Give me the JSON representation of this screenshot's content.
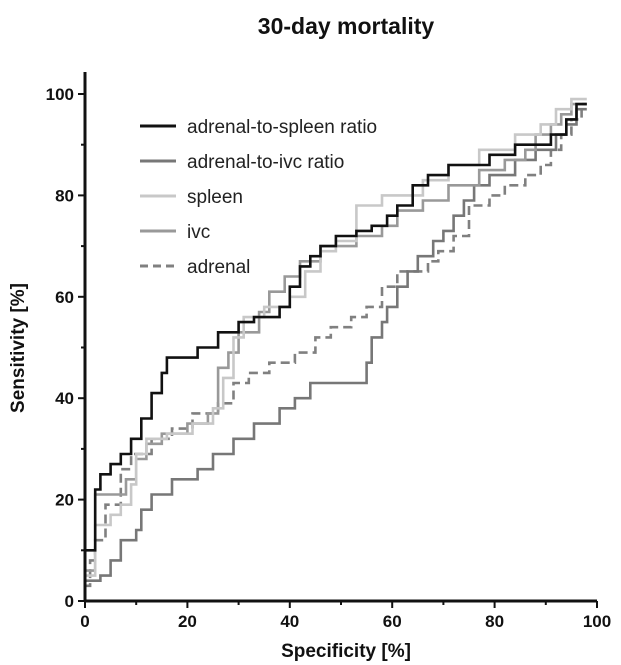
{
  "chart_data": {
    "type": "line",
    "title": "30-day mortality",
    "xlabel": "Specificity [%]",
    "ylabel": "Sensitivity [%]",
    "xlim": [
      0,
      100
    ],
    "ylim": [
      0,
      100
    ],
    "xticks": [
      "0",
      "20",
      "40",
      "60",
      "80",
      "100"
    ],
    "yticks": [
      "0",
      "20",
      "40",
      "60",
      "80",
      "100"
    ],
    "legend_position": "top-left",
    "grid": false,
    "series": [
      {
        "name": "adrenal-to-spleen ratio",
        "color": "#111111",
        "dash": "solid",
        "points": [
          [
            0,
            0
          ],
          [
            0,
            10
          ],
          [
            2,
            10
          ],
          [
            2,
            22
          ],
          [
            3,
            22
          ],
          [
            3,
            25
          ],
          [
            5,
            25
          ],
          [
            5,
            27
          ],
          [
            7,
            27
          ],
          [
            7,
            29
          ],
          [
            9,
            29
          ],
          [
            9,
            32
          ],
          [
            11,
            32
          ],
          [
            11,
            36
          ],
          [
            13,
            36
          ],
          [
            13,
            41
          ],
          [
            15,
            41
          ],
          [
            15,
            45
          ],
          [
            16,
            45
          ],
          [
            16,
            48
          ],
          [
            22,
            48
          ],
          [
            22,
            50
          ],
          [
            26,
            50
          ],
          [
            26,
            53
          ],
          [
            30,
            53
          ],
          [
            30,
            55
          ],
          [
            33,
            55
          ],
          [
            33,
            56
          ],
          [
            38,
            56
          ],
          [
            38,
            58
          ],
          [
            40,
            58
          ],
          [
            40,
            62
          ],
          [
            42,
            62
          ],
          [
            42,
            66
          ],
          [
            44,
            66
          ],
          [
            44,
            68
          ],
          [
            46,
            68
          ],
          [
            46,
            70
          ],
          [
            49,
            70
          ],
          [
            49,
            72
          ],
          [
            53,
            72
          ],
          [
            53,
            73
          ],
          [
            56,
            73
          ],
          [
            56,
            74
          ],
          [
            59,
            74
          ],
          [
            59,
            76
          ],
          [
            61,
            76
          ],
          [
            61,
            78
          ],
          [
            64,
            78
          ],
          [
            64,
            82
          ],
          [
            67,
            82
          ],
          [
            67,
            84
          ],
          [
            71,
            84
          ],
          [
            71,
            86
          ],
          [
            79,
            86
          ],
          [
            79,
            88
          ],
          [
            84,
            88
          ],
          [
            84,
            90
          ],
          [
            91,
            90
          ],
          [
            91,
            92
          ],
          [
            94,
            92
          ],
          [
            94,
            95
          ],
          [
            96,
            95
          ],
          [
            96,
            98
          ],
          [
            98,
            98
          ]
        ]
      },
      {
        "name": "adrenal-to-ivc ratio",
        "color": "#777777",
        "dash": "solid",
        "points": [
          [
            0,
            0
          ],
          [
            0,
            4
          ],
          [
            3,
            4
          ],
          [
            3,
            5
          ],
          [
            5,
            5
          ],
          [
            5,
            8
          ],
          [
            7,
            8
          ],
          [
            7,
            12
          ],
          [
            10,
            12
          ],
          [
            10,
            14
          ],
          [
            11,
            14
          ],
          [
            11,
            18
          ],
          [
            13,
            18
          ],
          [
            13,
            21
          ],
          [
            17,
            21
          ],
          [
            17,
            24
          ],
          [
            22,
            24
          ],
          [
            22,
            26
          ],
          [
            25,
            26
          ],
          [
            25,
            29
          ],
          [
            29,
            29
          ],
          [
            29,
            32
          ],
          [
            33,
            32
          ],
          [
            33,
            35
          ],
          [
            38,
            35
          ],
          [
            38,
            38
          ],
          [
            41,
            38
          ],
          [
            41,
            40
          ],
          [
            44,
            40
          ],
          [
            44,
            43
          ],
          [
            55,
            43
          ],
          [
            55,
            47
          ],
          [
            56,
            47
          ],
          [
            56,
            52
          ],
          [
            58,
            52
          ],
          [
            58,
            55
          ],
          [
            59,
            55
          ],
          [
            59,
            58
          ],
          [
            61,
            58
          ],
          [
            61,
            62
          ],
          [
            63,
            62
          ],
          [
            63,
            65
          ],
          [
            65,
            65
          ],
          [
            65,
            68
          ],
          [
            68,
            68
          ],
          [
            68,
            71
          ],
          [
            70,
            71
          ],
          [
            70,
            73
          ],
          [
            72,
            73
          ],
          [
            72,
            76
          ],
          [
            74,
            76
          ],
          [
            74,
            79
          ],
          [
            76,
            79
          ],
          [
            76,
            82
          ],
          [
            79,
            82
          ],
          [
            79,
            84
          ],
          [
            84,
            84
          ],
          [
            84,
            87
          ],
          [
            88,
            87
          ],
          [
            88,
            89
          ],
          [
            92,
            89
          ],
          [
            92,
            92
          ],
          [
            94,
            92
          ],
          [
            94,
            94
          ],
          [
            96,
            94
          ],
          [
            96,
            97
          ],
          [
            98,
            97
          ]
        ]
      },
      {
        "name": "spleen",
        "color": "#c8c8c8",
        "dash": "solid",
        "points": [
          [
            0,
            0
          ],
          [
            0,
            5
          ],
          [
            2,
            5
          ],
          [
            2,
            15
          ],
          [
            5,
            15
          ],
          [
            5,
            17
          ],
          [
            7,
            17
          ],
          [
            7,
            19
          ],
          [
            9,
            19
          ],
          [
            9,
            23
          ],
          [
            10,
            23
          ],
          [
            10,
            29
          ],
          [
            12,
            29
          ],
          [
            12,
            32
          ],
          [
            16,
            32
          ],
          [
            16,
            33
          ],
          [
            21,
            33
          ],
          [
            21,
            35
          ],
          [
            25,
            35
          ],
          [
            25,
            38
          ],
          [
            27,
            38
          ],
          [
            27,
            44
          ],
          [
            29,
            44
          ],
          [
            29,
            52
          ],
          [
            31,
            52
          ],
          [
            31,
            56
          ],
          [
            35,
            56
          ],
          [
            35,
            58
          ],
          [
            40,
            58
          ],
          [
            40,
            60
          ],
          [
            43,
            60
          ],
          [
            43,
            65
          ],
          [
            46,
            65
          ],
          [
            46,
            69
          ],
          [
            49,
            69
          ],
          [
            49,
            71
          ],
          [
            53,
            71
          ],
          [
            53,
            78
          ],
          [
            58,
            78
          ],
          [
            58,
            80
          ],
          [
            66,
            80
          ],
          [
            66,
            83
          ],
          [
            71,
            83
          ],
          [
            71,
            86
          ],
          [
            77,
            86
          ],
          [
            77,
            89
          ],
          [
            84,
            89
          ],
          [
            84,
            92
          ],
          [
            89,
            92
          ],
          [
            89,
            94
          ],
          [
            92,
            94
          ],
          [
            92,
            97
          ],
          [
            95,
            97
          ],
          [
            95,
            99
          ],
          [
            98,
            99
          ]
        ]
      },
      {
        "name": "ivc",
        "color": "#999999",
        "dash": "solid",
        "points": [
          [
            0,
            0
          ],
          [
            0,
            6
          ],
          [
            2,
            6
          ],
          [
            2,
            21
          ],
          [
            8,
            21
          ],
          [
            8,
            24
          ],
          [
            10,
            24
          ],
          [
            10,
            28
          ],
          [
            12,
            28
          ],
          [
            12,
            31
          ],
          [
            15,
            31
          ],
          [
            15,
            33
          ],
          [
            20,
            33
          ],
          [
            20,
            35
          ],
          [
            24,
            35
          ],
          [
            24,
            37
          ],
          [
            26,
            37
          ],
          [
            26,
            46
          ],
          [
            28,
            46
          ],
          [
            28,
            49
          ],
          [
            30,
            49
          ],
          [
            30,
            53
          ],
          [
            34,
            53
          ],
          [
            34,
            57
          ],
          [
            36,
            57
          ],
          [
            36,
            61
          ],
          [
            39,
            61
          ],
          [
            39,
            64
          ],
          [
            42,
            64
          ],
          [
            42,
            67
          ],
          [
            46,
            67
          ],
          [
            46,
            70
          ],
          [
            53,
            70
          ],
          [
            53,
            72
          ],
          [
            58,
            72
          ],
          [
            58,
            74
          ],
          [
            61,
            74
          ],
          [
            61,
            77
          ],
          [
            66,
            77
          ],
          [
            66,
            79
          ],
          [
            71,
            79
          ],
          [
            71,
            82
          ],
          [
            77,
            82
          ],
          [
            77,
            85
          ],
          [
            82,
            85
          ],
          [
            82,
            87
          ],
          [
            86,
            87
          ],
          [
            86,
            89
          ],
          [
            88,
            89
          ],
          [
            88,
            92
          ],
          [
            91,
            92
          ],
          [
            91,
            94
          ],
          [
            93,
            94
          ],
          [
            93,
            96
          ],
          [
            95,
            96
          ],
          [
            95,
            98
          ],
          [
            98,
            98
          ]
        ]
      },
      {
        "name": "adrenal",
        "color": "#808080",
        "dash": "dashed",
        "points": [
          [
            0,
            0
          ],
          [
            0,
            3
          ],
          [
            1,
            3
          ],
          [
            1,
            8
          ],
          [
            2,
            8
          ],
          [
            2,
            12
          ],
          [
            4,
            12
          ],
          [
            4,
            19
          ],
          [
            7,
            19
          ],
          [
            7,
            26
          ],
          [
            9,
            26
          ],
          [
            9,
            29
          ],
          [
            13,
            29
          ],
          [
            13,
            32
          ],
          [
            17,
            32
          ],
          [
            17,
            34
          ],
          [
            21,
            34
          ],
          [
            21,
            37
          ],
          [
            26,
            37
          ],
          [
            26,
            39
          ],
          [
            29,
            39
          ],
          [
            29,
            43
          ],
          [
            32,
            43
          ],
          [
            32,
            45
          ],
          [
            36,
            45
          ],
          [
            36,
            47
          ],
          [
            41,
            47
          ],
          [
            41,
            49
          ],
          [
            45,
            49
          ],
          [
            45,
            52
          ],
          [
            48,
            52
          ],
          [
            48,
            54
          ],
          [
            52,
            54
          ],
          [
            52,
            56
          ],
          [
            55,
            56
          ],
          [
            55,
            58
          ],
          [
            58,
            58
          ],
          [
            58,
            62
          ],
          [
            61,
            62
          ],
          [
            61,
            65
          ],
          [
            67,
            65
          ],
          [
            67,
            67
          ],
          [
            69,
            67
          ],
          [
            69,
            69
          ],
          [
            72,
            69
          ],
          [
            72,
            72
          ],
          [
            75,
            72
          ],
          [
            75,
            78
          ],
          [
            79,
            78
          ],
          [
            79,
            80
          ],
          [
            82,
            80
          ],
          [
            82,
            82
          ],
          [
            86,
            82
          ],
          [
            86,
            84
          ],
          [
            89,
            84
          ],
          [
            89,
            86
          ],
          [
            91,
            86
          ],
          [
            91,
            89
          ],
          [
            93,
            89
          ],
          [
            93,
            92
          ],
          [
            95,
            92
          ],
          [
            95,
            95
          ],
          [
            97,
            95
          ],
          [
            97,
            98
          ],
          [
            98,
            98
          ]
        ]
      }
    ]
  }
}
